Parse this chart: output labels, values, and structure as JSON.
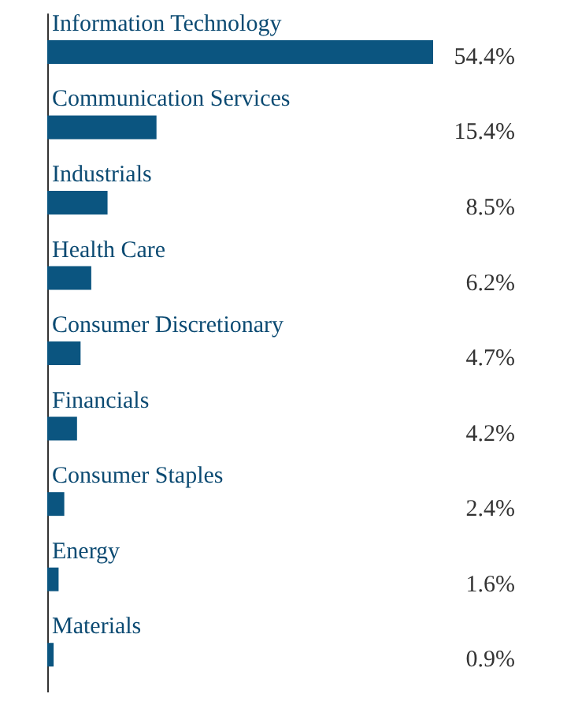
{
  "chart_data": {
    "type": "bar",
    "orientation": "horizontal",
    "categories": [
      "Information Technology",
      "Communication Services",
      "Industrials",
      "Health Care",
      "Consumer Discretionary",
      "Financials",
      "Consumer Staples",
      "Energy",
      "Materials"
    ],
    "values": [
      54.4,
      15.4,
      8.5,
      6.2,
      4.7,
      4.2,
      2.4,
      1.6,
      0.9
    ],
    "value_labels": [
      "54.4%",
      "15.4%",
      "8.5%",
      "6.2%",
      "4.7%",
      "4.2%",
      "2.4%",
      "1.6%",
      "0.9%"
    ],
    "color": "#0b5580"
  }
}
